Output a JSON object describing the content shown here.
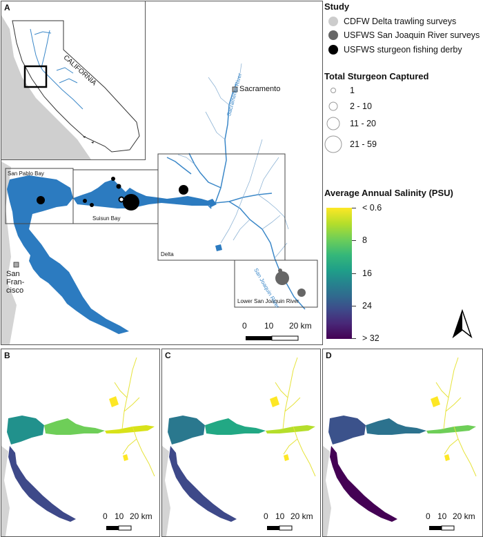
{
  "panels": {
    "a": {
      "label": "A"
    },
    "b": {
      "label": "B"
    },
    "c": {
      "label": "C"
    },
    "d": {
      "label": "D"
    }
  },
  "inset": {
    "state_label": "CALIFORNIA"
  },
  "places": {
    "sacramento": "Sacramento",
    "sf_line1": "San",
    "sf_line2": "Fran-",
    "sf_line3": "cisco",
    "san_pablo_bay": "San Pablo Bay",
    "suisun_bay": "Suisun Bay",
    "delta": "Delta",
    "lower_sjr": "Lower San Joaquin River",
    "sacramento_river": "Sacramento River",
    "san_joaquin_river": "San Joaquin River"
  },
  "legend": {
    "study_title": "Study",
    "study_items": [
      {
        "label": "CDFW Delta trawling surveys",
        "color": "#cccccc"
      },
      {
        "label": "USFWS San Joaquin River surveys",
        "color": "#666666"
      },
      {
        "label": "USFWS sturgeon fishing derby",
        "color": "#000000"
      }
    ],
    "size_title": "Total Sturgeon Captured",
    "size_items": [
      "1",
      "2 - 10",
      "11 - 20",
      "21 - 59"
    ],
    "salinity_title": "Average Annual Salinity (PSU)",
    "salinity_labels": [
      "< 0.6",
      "8",
      "16",
      "24",
      "> 32"
    ]
  },
  "scalebar": {
    "main": [
      "0",
      "10",
      "20 km"
    ]
  },
  "colors": {
    "water": "#2b7bc0",
    "land": "#d6d6d6",
    "frame": "#555555"
  }
}
